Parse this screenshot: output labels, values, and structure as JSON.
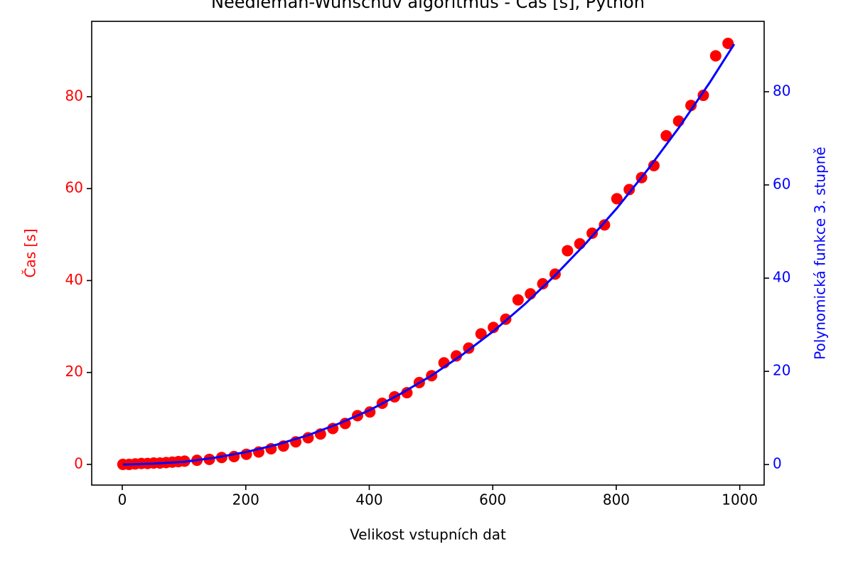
{
  "chart_data": {
    "type": "scatter",
    "title": "Needleman-Wunschův algoritmus - Čas [s], Python",
    "xlabel": "Velikost vstupních dat",
    "ylabel": "Čas [s]",
    "y2label": "Polynomická funkce 3. stupně",
    "ylabel_color": "#ff0000",
    "y2label_color": "#0000ff",
    "xlim": [
      -49.5,
      1039.5
    ],
    "xticks": [
      0,
      200,
      400,
      600,
      800,
      1000
    ],
    "ylim": [
      -4.5,
      96.4
    ],
    "yticks": [
      0,
      20,
      40,
      60,
      80
    ],
    "y2lim": [
      -4.4,
      95.1
    ],
    "y2ticks": [
      0,
      20,
      40,
      60,
      80
    ],
    "series": [
      {
        "type": "scatter",
        "color": "#ff0000",
        "x": [
          1,
          11,
          21,
          31,
          41,
          51,
          61,
          71,
          81,
          91,
          101,
          121,
          141,
          161,
          181,
          201,
          221,
          241,
          261,
          281,
          301,
          321,
          341,
          361,
          381,
          401,
          421,
          441,
          461,
          481,
          501,
          521,
          541,
          561,
          581,
          601,
          621,
          641,
          661,
          681,
          701,
          721,
          741,
          761,
          781,
          801,
          821,
          841,
          861,
          881,
          901,
          921,
          941,
          961,
          981,
          991
        ],
        "values": [
          0,
          0,
          0.1,
          0.2,
          0.2,
          0.3,
          0.3,
          0.4,
          0.5,
          0.6,
          0.7,
          0.9,
          1.1,
          1.5,
          1.7,
          2.2,
          2.7,
          3.4,
          4.0,
          4.9,
          5.8,
          6.6,
          7.8,
          8.9,
          10.6,
          11.4,
          13.3,
          14.7,
          15.6,
          17.8,
          19.3,
          22.1,
          23.6,
          25.3,
          28.4,
          29.8,
          31.6,
          35.8,
          37.1,
          39.3,
          41.4,
          46.5,
          48.0,
          50.3,
          52.1,
          57.8,
          59.8,
          62.4,
          65.0,
          71.5,
          74.7,
          78.1,
          80.3,
          88.9,
          91.6,
          null
        ]
      },
      {
        "type": "line",
        "color": "#0000ff",
        "axis": "y2",
        "x": [
          1,
          51,
          101,
          151,
          201,
          251,
          301,
          351,
          401,
          451,
          501,
          551,
          601,
          651,
          701,
          751,
          801,
          851,
          901,
          951,
          991
        ],
        "values": [
          0,
          0.2,
          0.6,
          1.5,
          2.7,
          4.3,
          6.3,
          8.8,
          11.7,
          15.2,
          19.1,
          23.6,
          28.6,
          34.3,
          40.6,
          47.5,
          55.0,
          63.3,
          72.2,
          81.9,
          90.2
        ]
      }
    ]
  }
}
